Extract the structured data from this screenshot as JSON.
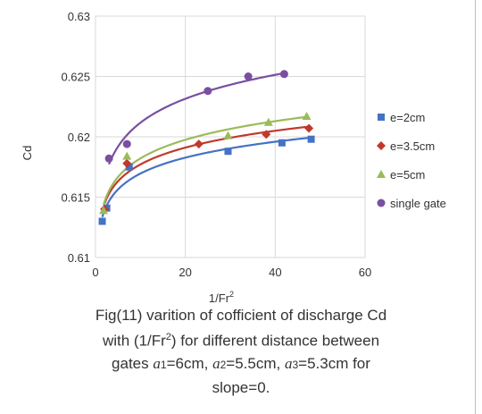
{
  "chart_data": {
    "type": "scatter",
    "xlabel": "1/Fr",
    "xlabel_sup": "2",
    "ylabel": "Cd",
    "xlim": [
      0,
      60
    ],
    "ylim": [
      0.61,
      0.63
    ],
    "xticks": [
      "0",
      "20",
      "40",
      "60"
    ],
    "yticks": [
      "0.61",
      "0.615",
      "0.62",
      "0.625",
      "0.63"
    ],
    "grid": true,
    "legend_position": "right",
    "trendline": "logarithmic",
    "series": [
      {
        "name": "e=2cm",
        "marker": "square",
        "color": "#4472c4",
        "x": [
          1.5,
          2.5,
          7.5,
          29.5,
          41.5,
          48.0
        ],
        "y": [
          0.613,
          0.6141,
          0.6175,
          0.6188,
          0.6195,
          0.6198
        ]
      },
      {
        "name": "e=3.5cm",
        "marker": "diamond",
        "color": "#c0392b",
        "x": [
          2.0,
          7.0,
          23.0,
          38.0,
          47.5
        ],
        "y": [
          0.614,
          0.6178,
          0.6194,
          0.6202,
          0.6207
        ]
      },
      {
        "name": "e=5cm",
        "marker": "triangle",
        "color": "#9bbb59",
        "x": [
          1.8,
          7.0,
          29.5,
          38.5,
          47.0
        ],
        "y": [
          0.6139,
          0.6184,
          0.6201,
          0.6212,
          0.6217
        ]
      },
      {
        "name": "single gate",
        "marker": "circle",
        "color": "#7a4fa0",
        "x": [
          3.0,
          7.0,
          25.0,
          34.0,
          42.0
        ],
        "y": [
          0.6182,
          0.6194,
          0.6238,
          0.625,
          0.6252
        ]
      }
    ]
  },
  "caption": {
    "line1": "Fig(11) varition of cofficient of discharge Cd",
    "line2_pre": "with (1/Fr",
    "line2_sup": "2",
    "line2_post": ") for different distance between",
    "line3": "gates",
    "a1_sym": "a",
    "a1_sub": "1",
    "a1_val": "=6cm,",
    "a2_sym": "a",
    "a2_sub": "2",
    "a2_val": "=5.5cm,",
    "a3_sym": "a",
    "a3_sub": "3",
    "a3_val": "=5.3cm for",
    "line4": "slope=0."
  }
}
